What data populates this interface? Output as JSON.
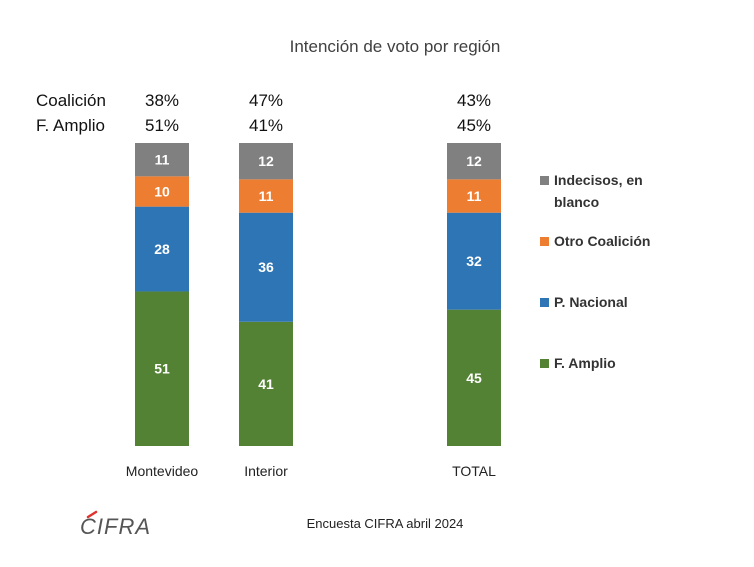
{
  "chart_data": {
    "type": "bar",
    "stacked": true,
    "title": "Intención de voto por región",
    "categories": [
      "Montevideo",
      "Interior",
      "TOTAL"
    ],
    "series": [
      {
        "name": "F. Amplio",
        "color": "#548235",
        "values": [
          51,
          41,
          45
        ]
      },
      {
        "name": "P. Nacional",
        "color": "#2E75B6",
        "values": [
          28,
          36,
          32
        ]
      },
      {
        "name": "Otro Coalición",
        "color": "#ED7D31",
        "values": [
          10,
          11,
          11
        ]
      },
      {
        "name": "Indecisos, en blanco",
        "color": "#808080",
        "values": [
          11,
          12,
          12
        ]
      }
    ],
    "legend_order": [
      "Indecisos, en",
      "blanco",
      "Otro Coalición",
      "P. Nacional",
      "F. Amplio"
    ],
    "legend_placement": "right",
    "summary": [
      {
        "label": "Coalición",
        "values": [
          "38%",
          "47%",
          "43%"
        ]
      },
      {
        "label": "F. Amplio",
        "values": [
          "51%",
          "41%",
          "45%"
        ]
      }
    ],
    "ylim": [
      0,
      100
    ],
    "grid": false
  },
  "footer": {
    "logo": "CIFRA",
    "source": "Encuesta CIFRA abril 2024"
  }
}
